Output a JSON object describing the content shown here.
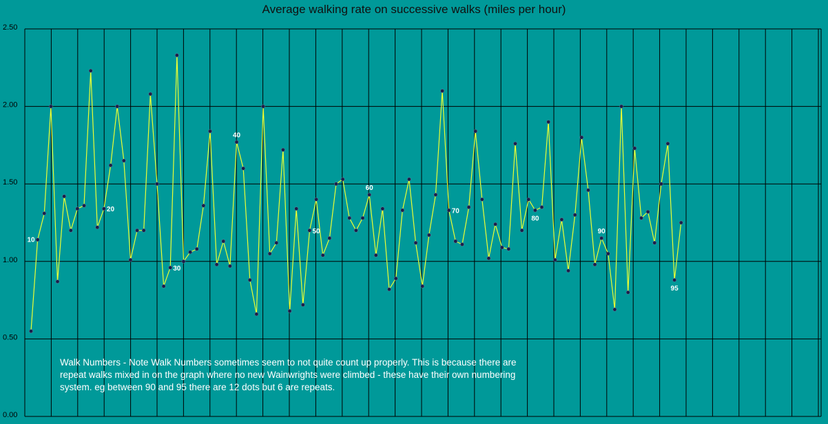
{
  "chart_data": {
    "type": "line",
    "title": "Average walking rate on successive walks (miles per hour)",
    "xlabel": "",
    "ylabel": "",
    "ylim": [
      0,
      2.5
    ],
    "yticks": [
      "0.00",
      "0.50",
      "1.00",
      "1.50",
      "2.00",
      "2.50"
    ],
    "grid": true,
    "legend": "none",
    "colors": {
      "background": "#009999",
      "line": "#eeff33",
      "marker": "#1a1f4a",
      "grid": "#000000"
    },
    "series": [
      {
        "values": [
          0.55,
          1.14,
          1.31,
          2.0,
          0.87,
          1.42,
          1.2,
          1.34,
          1.36,
          2.23,
          1.22,
          1.34,
          1.62,
          2.0,
          1.65,
          1.01,
          1.2,
          1.2,
          2.08,
          1.5,
          0.84,
          0.96,
          2.33,
          1.0,
          1.06,
          1.08,
          1.36,
          1.84,
          0.98,
          1.13,
          0.97,
          1.77,
          1.6,
          0.88,
          0.66,
          2.0,
          1.05,
          1.12,
          1.72,
          0.68,
          1.34,
          0.72,
          1.2,
          1.4,
          1.04,
          1.15,
          1.5,
          1.53,
          1.28,
          1.2,
          1.28,
          1.43,
          1.04,
          1.34,
          0.82,
          0.89,
          1.33,
          1.53,
          1.12,
          0.84,
          1.17,
          1.43,
          2.1,
          1.33,
          1.13,
          1.11,
          1.35,
          1.84,
          1.4,
          1.02,
          1.24,
          1.09,
          1.08,
          1.76,
          1.2,
          1.4,
          1.33,
          1.35,
          1.9,
          1.01,
          1.27,
          0.94,
          1.3,
          1.8,
          1.46,
          0.98,
          1.15,
          1.05,
          0.69,
          2.0,
          0.8,
          1.73,
          1.28,
          1.32,
          1.12,
          1.5,
          1.76,
          0.88,
          1.25
        ]
      }
    ],
    "annotations": [
      {
        "index": 1,
        "text": "10"
      },
      {
        "index": 11,
        "text": "20"
      },
      {
        "index": 21,
        "text": "30"
      },
      {
        "index": 31,
        "text": "40"
      },
      {
        "index": 42,
        "text": "50"
      },
      {
        "index": 51,
        "text": "60"
      },
      {
        "index": 63,
        "text": "70"
      },
      {
        "index": 76,
        "text": "80"
      },
      {
        "index": 86,
        "text": "90"
      },
      {
        "index": 97,
        "text": "95"
      }
    ]
  },
  "note": "Walk Numbers - Note Walk Numbers sometimes seem to not quite count up properly. This is because there are repeat walks mixed in on the graph where no new Wainwrights were climbed - these have their own numbering system. eg between 90 and 95 there are 12 dots but 6 are repeats."
}
